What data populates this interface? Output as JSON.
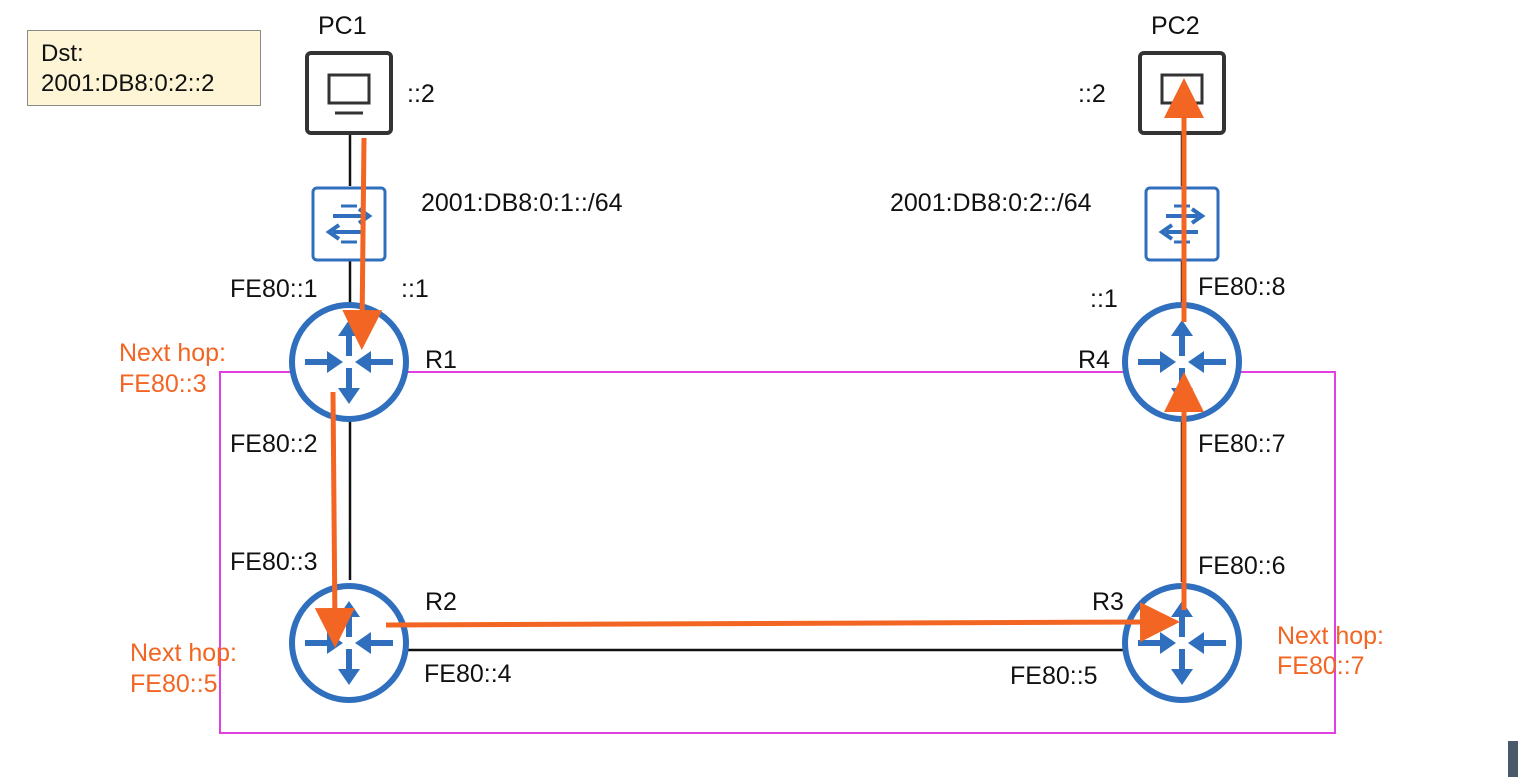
{
  "dst_box": {
    "label": "Dst:",
    "address": "2001:DB8:0:2::2"
  },
  "devices": {
    "pc1": {
      "name": "PC1",
      "addr": "::2",
      "icon": "pc-icon"
    },
    "pc2": {
      "name": "PC2",
      "addr": "::2",
      "icon": "pc-icon"
    },
    "sw1": {
      "network": "2001:DB8:0:1::/64",
      "icon": "switch-icon"
    },
    "sw2": {
      "network": "2001:DB8:0:2::/64",
      "icon": "switch-icon"
    },
    "r1": {
      "name": "R1",
      "lan_ll": "FE80::1",
      "lan_addr": "::1",
      "wan_ll": "FE80::2",
      "icon": "router-icon"
    },
    "r2": {
      "name": "R2",
      "up_ll": "FE80::3",
      "right_ll": "FE80::4",
      "icon": "router-icon"
    },
    "r3": {
      "name": "R3",
      "left_ll": "FE80::5",
      "up_ll": "FE80::6",
      "icon": "router-icon"
    },
    "r4": {
      "name": "R4",
      "lan_addr": "::1",
      "lan_ll": "FE80::8",
      "down_ll": "FE80::7",
      "icon": "router-icon"
    }
  },
  "next_hops": {
    "r1": {
      "label": "Next hop:",
      "value": "FE80::3"
    },
    "r2": {
      "label": "Next hop:",
      "value": "FE80::5"
    },
    "r3": {
      "label": "Next hop:",
      "value": "FE80::7"
    }
  },
  "colors": {
    "router": "#2f6fbd",
    "path_arrow": "#f26522",
    "highlight_box": "#e040e0",
    "pc_border": "#333333",
    "dst_box_bg": "#fdf5d6"
  }
}
